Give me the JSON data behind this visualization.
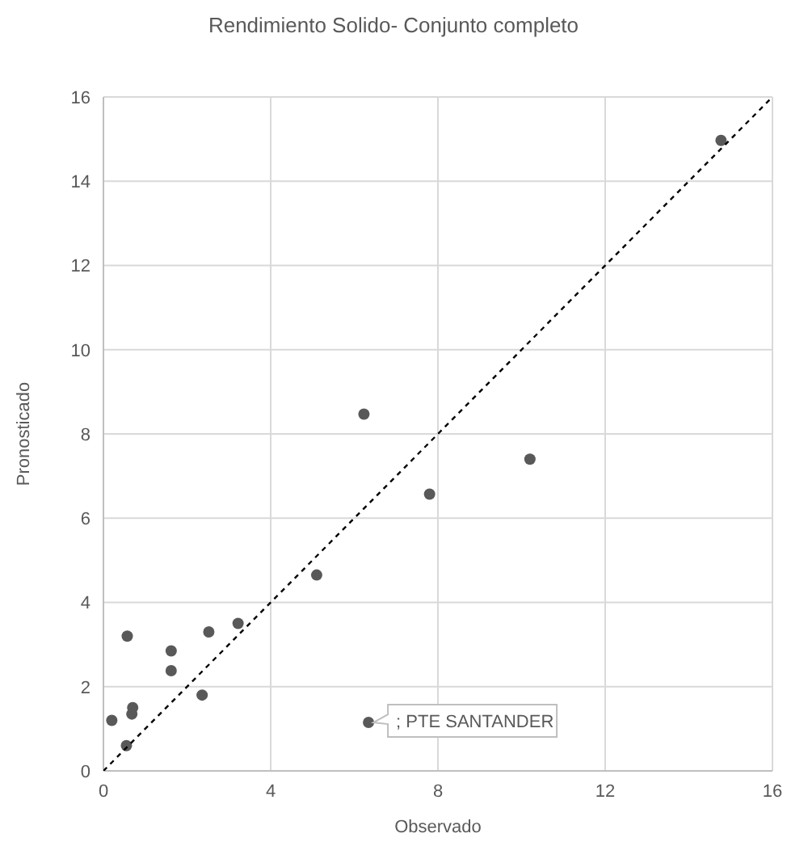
{
  "chart_data": {
    "type": "scatter",
    "title": "Rendimiento Solido- Conjunto completo",
    "xlabel": "Observado",
    "ylabel": "Pronosticado",
    "series": [
      {
        "color": "#595959",
        "x": [
          0.2,
          0.57,
          0.55,
          0.68,
          0.7,
          1.62,
          1.62,
          2.36,
          2.52,
          3.22,
          5.1,
          6.34,
          6.23,
          7.8,
          10.2,
          14.77
        ],
        "values": [
          1.2,
          3.2,
          0.6,
          1.35,
          1.5,
          2.85,
          2.38,
          1.8,
          3.3,
          3.5,
          4.65,
          1.15,
          8.47,
          6.57,
          7.4,
          14.97
        ]
      },
      {
        "type": "line",
        "color": "#000000",
        "line_style": "dashed",
        "marker": "none",
        "x": [
          0,
          16
        ],
        "values": [
          0,
          16
        ]
      }
    ],
    "annotations": [
      {
        "text": "; PTE SANTANDER",
        "x": 6.34,
        "y": 1.15
      }
    ],
    "xlim": [
      0,
      16
    ],
    "xticks": [
      0,
      4,
      8,
      12,
      16
    ],
    "ylim": [
      0,
      16
    ],
    "yticks": [
      0,
      2,
      4,
      6,
      8,
      10,
      12,
      14,
      16
    ],
    "grid": true,
    "legend": false
  }
}
